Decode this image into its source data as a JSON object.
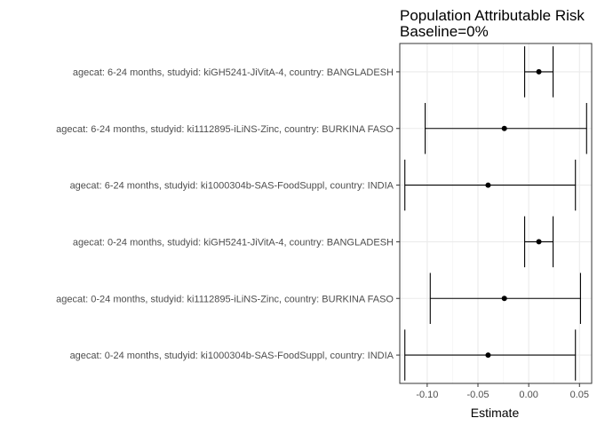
{
  "chart_data": {
    "type": "scatter",
    "title": [
      "Population Attributable Risk",
      "Baseline=0%"
    ],
    "xlabel": "Estimate",
    "ylabel": "",
    "xlim": [
      -0.127,
      0.062
    ],
    "xticks": [
      -0.1,
      -0.05,
      0.0,
      0.05
    ],
    "xtick_labels": [
      "-0.10",
      "-0.05",
      "0.00",
      "0.05"
    ],
    "grid": true,
    "categories": [
      "agecat: 6-24 months, studyid: kiGH5241-JiVitA-4, country: BANGLADESH",
      "agecat: 6-24 months, studyid: ki1112895-iLiNS-Zinc, country: BURKINA FASO",
      "agecat: 6-24 months, studyid: ki1000304b-SAS-FoodSuppl, country: INDIA",
      "agecat: 0-24 months, studyid: kiGH5241-JiVitA-4, country: BANGLADESH",
      "agecat: 0-24 months, studyid: ki1112895-iLiNS-Zinc, country: BURKINA FASO",
      "agecat: 0-24 months, studyid: ki1000304b-SAS-FoodSuppl, country: INDIA"
    ],
    "series": [
      {
        "estimate": [
          0.01,
          -0.024,
          -0.04,
          0.01,
          -0.024,
          -0.04
        ],
        "lower": [
          -0.004,
          -0.102,
          -0.122,
          -0.004,
          -0.097,
          -0.122
        ],
        "upper": [
          0.024,
          0.057,
          0.046,
          0.024,
          0.051,
          0.046
        ]
      }
    ]
  }
}
